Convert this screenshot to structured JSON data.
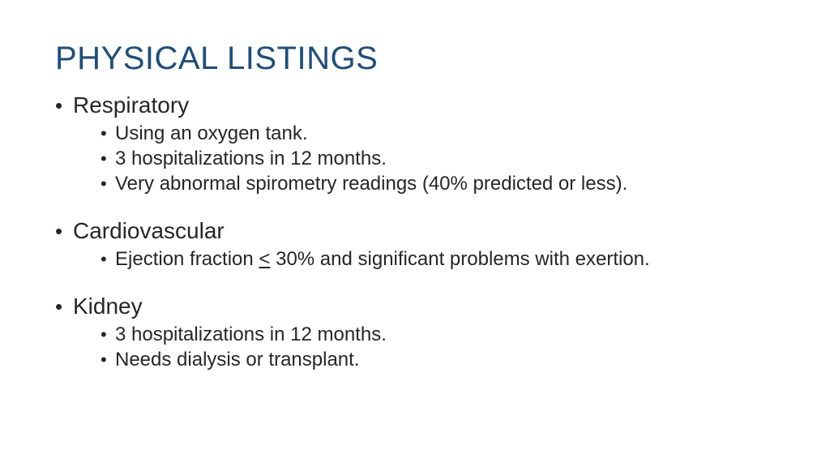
{
  "title": "PHYSICAL LISTINGS",
  "title_color": "#1f4e79",
  "body_color": "#262626",
  "background_color": "#ffffff",
  "title_fontsize": 40,
  "l1_fontsize": 28,
  "l2_fontsize": 24,
  "sections": [
    {
      "heading": "Respiratory",
      "items": [
        "Using an oxygen tank.",
        "3 hospitalizations in 12 months.",
        "Very abnormal spirometry readings (40% predicted or less)."
      ]
    },
    {
      "heading": "Cardiovascular",
      "items": [
        "Ejection fraction < 30% and significant problems with exertion."
      ]
    },
    {
      "heading": "Kidney",
      "items": [
        "3 hospitalizations in 12 months.",
        "Needs dialysis or transplant."
      ]
    }
  ]
}
